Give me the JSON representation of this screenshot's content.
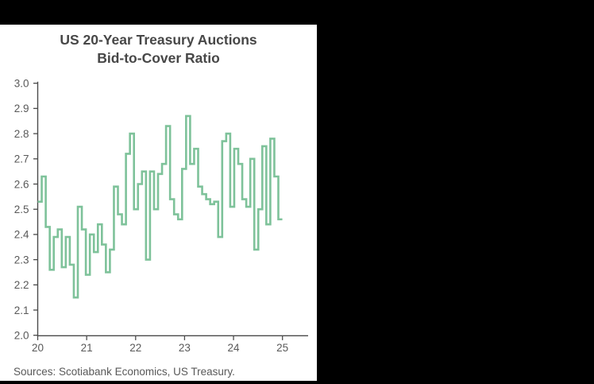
{
  "window": {
    "canvas_bg": "#000000",
    "panel_bg": "#ffffff"
  },
  "chart_data": {
    "type": "line",
    "step": true,
    "title": "US 20-Year Treasury Auctions",
    "subtitle": "Bid-to-Cover Ratio",
    "source_note": "Sources: Scotiabank Economics, US Treasury.",
    "x": [
      "May-20",
      "Jun-20",
      "Jul-20",
      "Aug-20",
      "Sep-20",
      "Oct-20",
      "Nov-20",
      "Dec-20",
      "Jan-21",
      "Feb-21",
      "Mar-21",
      "Apr-21",
      "May-21",
      "Jun-21",
      "Jul-21",
      "Aug-21",
      "Sep-21",
      "Oct-21",
      "Nov-21",
      "Dec-21",
      "Jan-22",
      "Feb-22",
      "Mar-22",
      "Apr-22",
      "May-22",
      "Jun-22",
      "Jul-22",
      "Aug-22",
      "Sep-22",
      "Oct-22",
      "Nov-22",
      "Dec-22",
      "Jan-23",
      "Feb-23",
      "Mar-23",
      "Apr-23",
      "May-23",
      "Jun-23",
      "Jul-23",
      "Aug-23",
      "Sep-23",
      "Oct-23",
      "Nov-23",
      "Dec-23",
      "Jan-24",
      "Feb-24",
      "Mar-24",
      "Apr-24",
      "May-24",
      "Jun-24",
      "Jul-24",
      "Aug-24",
      "Sep-24",
      "Oct-24",
      "Nov-24",
      "Dec-24",
      "Jan-25",
      "Feb-25",
      "Mar-25",
      "Apr-25",
      "May-25"
    ],
    "values": [
      2.53,
      2.63,
      2.43,
      2.26,
      2.39,
      2.42,
      2.27,
      2.39,
      2.28,
      2.15,
      2.51,
      2.42,
      2.24,
      2.4,
      2.33,
      2.44,
      2.36,
      2.25,
      2.34,
      2.59,
      2.48,
      2.44,
      2.72,
      2.8,
      2.5,
      2.6,
      2.65,
      2.3,
      2.65,
      2.5,
      2.64,
      2.68,
      2.83,
      2.54,
      2.48,
      2.46,
      2.66,
      2.87,
      2.68,
      2.74,
      2.59,
      2.56,
      2.54,
      2.52,
      2.53,
      2.39,
      2.77,
      2.8,
      2.51,
      2.74,
      2.68,
      2.54,
      2.51,
      2.7,
      2.34,
      2.5,
      2.75,
      2.44,
      2.78,
      2.63,
      2.46
    ],
    "x_tick_labels": [
      "20",
      "21",
      "22",
      "23",
      "24",
      "25"
    ],
    "x_tick_indices": [
      0,
      12,
      24,
      36,
      48,
      60
    ],
    "y_ticks": [
      "2.0",
      "2.1",
      "2.2",
      "2.3",
      "2.4",
      "2.5",
      "2.6",
      "2.7",
      "2.8",
      "2.9",
      "3.0"
    ],
    "ylim": [
      2.0,
      3.0
    ],
    "grid": false,
    "legend": "none",
    "line_color": "#7EC29A",
    "axis_color": "#4A4A4A",
    "text_color": "#595959",
    "title_color": "#474747"
  }
}
